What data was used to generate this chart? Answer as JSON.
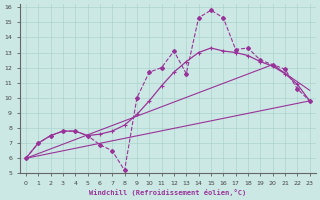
{
  "xlabel": "Windchill (Refroidissement éolien,°C)",
  "background_color": "#cce8e4",
  "grid_color": "#aad4cc",
  "line_color": "#993399",
  "xlim": [
    -0.5,
    23.5
  ],
  "ylim": [
    5,
    16.2
  ],
  "xticks": [
    0,
    1,
    2,
    3,
    4,
    5,
    6,
    7,
    8,
    9,
    10,
    11,
    12,
    13,
    14,
    15,
    16,
    17,
    18,
    19,
    20,
    21,
    22,
    23
  ],
  "yticks": [
    5,
    6,
    7,
    8,
    9,
    10,
    11,
    12,
    13,
    14,
    15,
    16
  ],
  "dashed_x": [
    0,
    1,
    2,
    3,
    4,
    5,
    6,
    7,
    8,
    9,
    10,
    11,
    12,
    13,
    14,
    15,
    16,
    17,
    18,
    19,
    20,
    21,
    22,
    23
  ],
  "dashed_y": [
    6.0,
    7.0,
    7.5,
    7.8,
    7.8,
    7.5,
    6.9,
    6.5,
    5.2,
    10.0,
    11.7,
    12.0,
    13.1,
    11.6,
    15.3,
    15.8,
    15.3,
    13.2,
    13.3,
    12.5,
    12.2,
    11.9,
    10.6,
    9.8
  ],
  "smooth_x": [
    0,
    1,
    2,
    3,
    4,
    5,
    6,
    7,
    8,
    9,
    10,
    11,
    12,
    13,
    14,
    15,
    16,
    17,
    18,
    19,
    20,
    21,
    22,
    23
  ],
  "smooth_y": [
    6.0,
    7.0,
    7.5,
    7.8,
    7.8,
    7.5,
    7.6,
    7.8,
    8.2,
    8.9,
    9.8,
    10.8,
    11.7,
    12.4,
    13.0,
    13.3,
    13.1,
    13.0,
    12.8,
    12.4,
    12.1,
    11.6,
    10.9,
    9.8
  ],
  "line3_x": [
    0,
    23
  ],
  "line3_y": [
    6.0,
    9.8
  ],
  "line4_x": [
    0,
    20,
    23
  ],
  "line4_y": [
    6.0,
    12.2,
    10.5
  ]
}
